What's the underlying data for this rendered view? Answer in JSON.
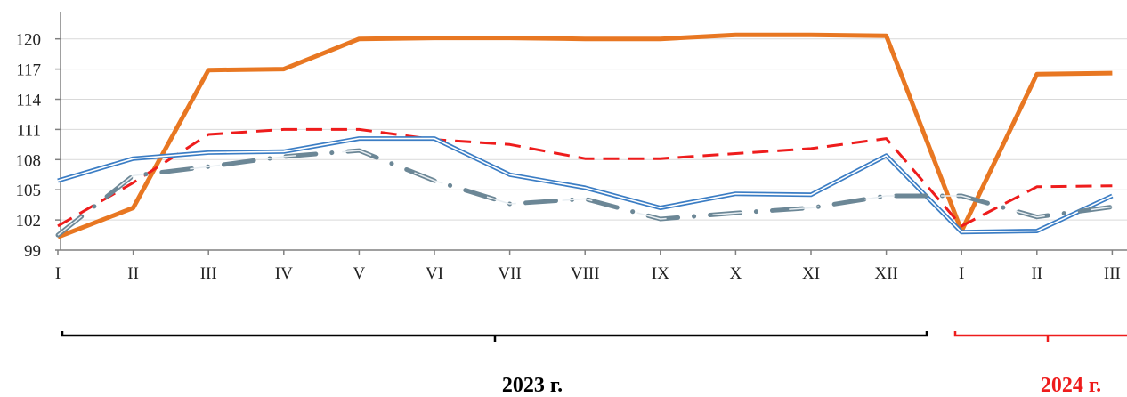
{
  "chart_data": {
    "type": "line",
    "x": [
      "I",
      "II",
      "III",
      "IV",
      "V",
      "VI",
      "VII",
      "VIII",
      "IX",
      "X",
      "XI",
      "XII",
      "I",
      "II",
      "III"
    ],
    "yticks": [
      99,
      102,
      105,
      108,
      111,
      114,
      117,
      120
    ],
    "ylim": [
      99,
      121.5
    ],
    "grid": true,
    "legend": "none",
    "series": [
      {
        "style": "orange-solid-thick",
        "color": "#E87722",
        "values": [
          100.3,
          103.2,
          116.9,
          117.0,
          120.0,
          120.1,
          120.1,
          120.0,
          120.0,
          120.4,
          120.4,
          120.3,
          100.9,
          116.5,
          116.6
        ]
      },
      {
        "style": "red-dashed",
        "color": "#EE1C1C",
        "values": [
          101.4,
          105.7,
          110.5,
          111.0,
          111.0,
          110.0,
          109.5,
          108.1,
          108.1,
          108.6,
          109.1,
          110.1,
          101.4,
          105.3,
          105.4
        ]
      },
      {
        "style": "blue-double",
        "color": "#3B7DC4",
        "values": [
          105.9,
          108.1,
          108.7,
          108.8,
          110.1,
          110.1,
          106.5,
          105.2,
          103.2,
          104.6,
          104.5,
          108.4,
          100.8,
          100.9,
          104.4
        ]
      },
      {
        "style": "grey-dash-dot",
        "color": "#6C8796",
        "values": [
          100.5,
          106.4,
          107.3,
          108.3,
          108.9,
          105.9,
          103.6,
          104.1,
          102.1,
          102.7,
          103.2,
          104.4,
          104.4,
          102.3,
          103.3
        ]
      }
    ],
    "year_groups": [
      {
        "label": "2023 г.",
        "color": "#000000"
      },
      {
        "label": "2024 г.",
        "color": "#EE1C1C"
      }
    ]
  }
}
